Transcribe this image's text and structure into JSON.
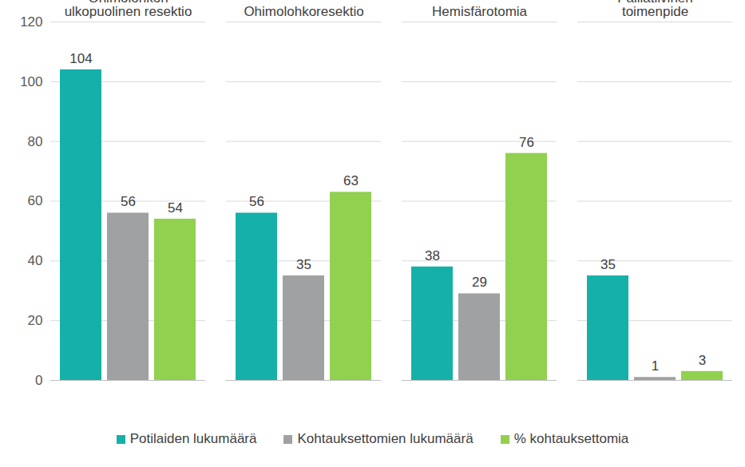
{
  "chart_data": {
    "type": "bar",
    "categories": [
      "Ohimolohkon ulkopuolinen resektio",
      "Ohimolohkoresektio",
      "Hemisfärotomia",
      "Palliatiivinen toimenpide"
    ],
    "series": [
      {
        "name": "Potilaiden lukumäärä",
        "color": "#15b1a8",
        "values": [
          104,
          56,
          38,
          35
        ]
      },
      {
        "name": "Kohtauksettomien lukumäärä",
        "color": "#a0a1a3",
        "values": [
          56,
          35,
          29,
          1
        ]
      },
      {
        "name": "% kohtauksettomia",
        "color": "#92d050",
        "values": [
          54,
          63,
          76,
          3
        ]
      }
    ],
    "ylim": [
      0,
      120
    ],
    "yticks": [
      0,
      20,
      40,
      60,
      80,
      100,
      120
    ],
    "grid": true,
    "data_labels": true,
    "legend": "bottom"
  }
}
